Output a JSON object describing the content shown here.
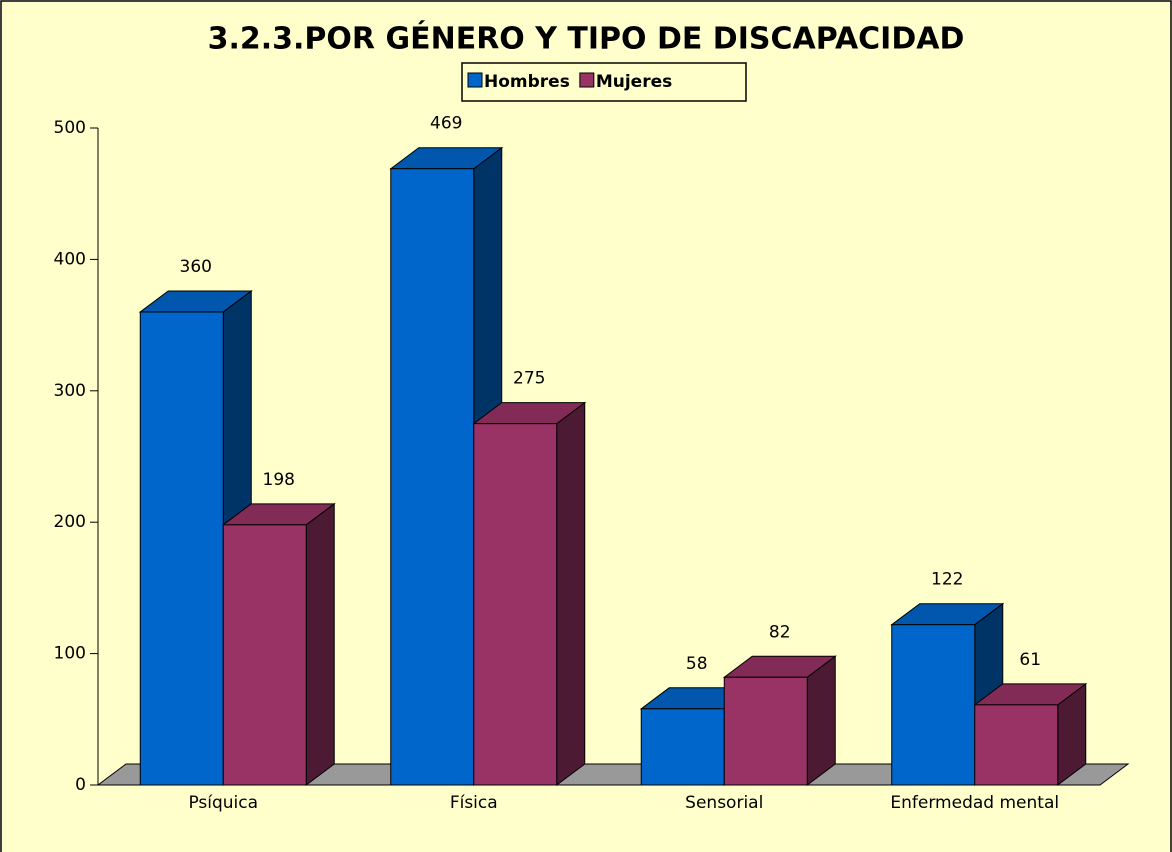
{
  "chart_data": {
    "type": "bar",
    "title": "3.2.3.POR GÉNERO Y TIPO DE DISCAPACIDAD",
    "categories": [
      "Psíquica",
      "Física",
      "Sensorial",
      "Enfermedad mental"
    ],
    "series": [
      {
        "name": "Hombres",
        "color": "#0066cc",
        "values": [
          360,
          469,
          58,
          122
        ]
      },
      {
        "name": "Mujeres",
        "color": "#993366",
        "values": [
          198,
          275,
          82,
          61
        ]
      }
    ],
    "ylim": [
      0,
      500
    ],
    "yticks": [
      0,
      100,
      200,
      300,
      400,
      500
    ],
    "legend": "top"
  }
}
